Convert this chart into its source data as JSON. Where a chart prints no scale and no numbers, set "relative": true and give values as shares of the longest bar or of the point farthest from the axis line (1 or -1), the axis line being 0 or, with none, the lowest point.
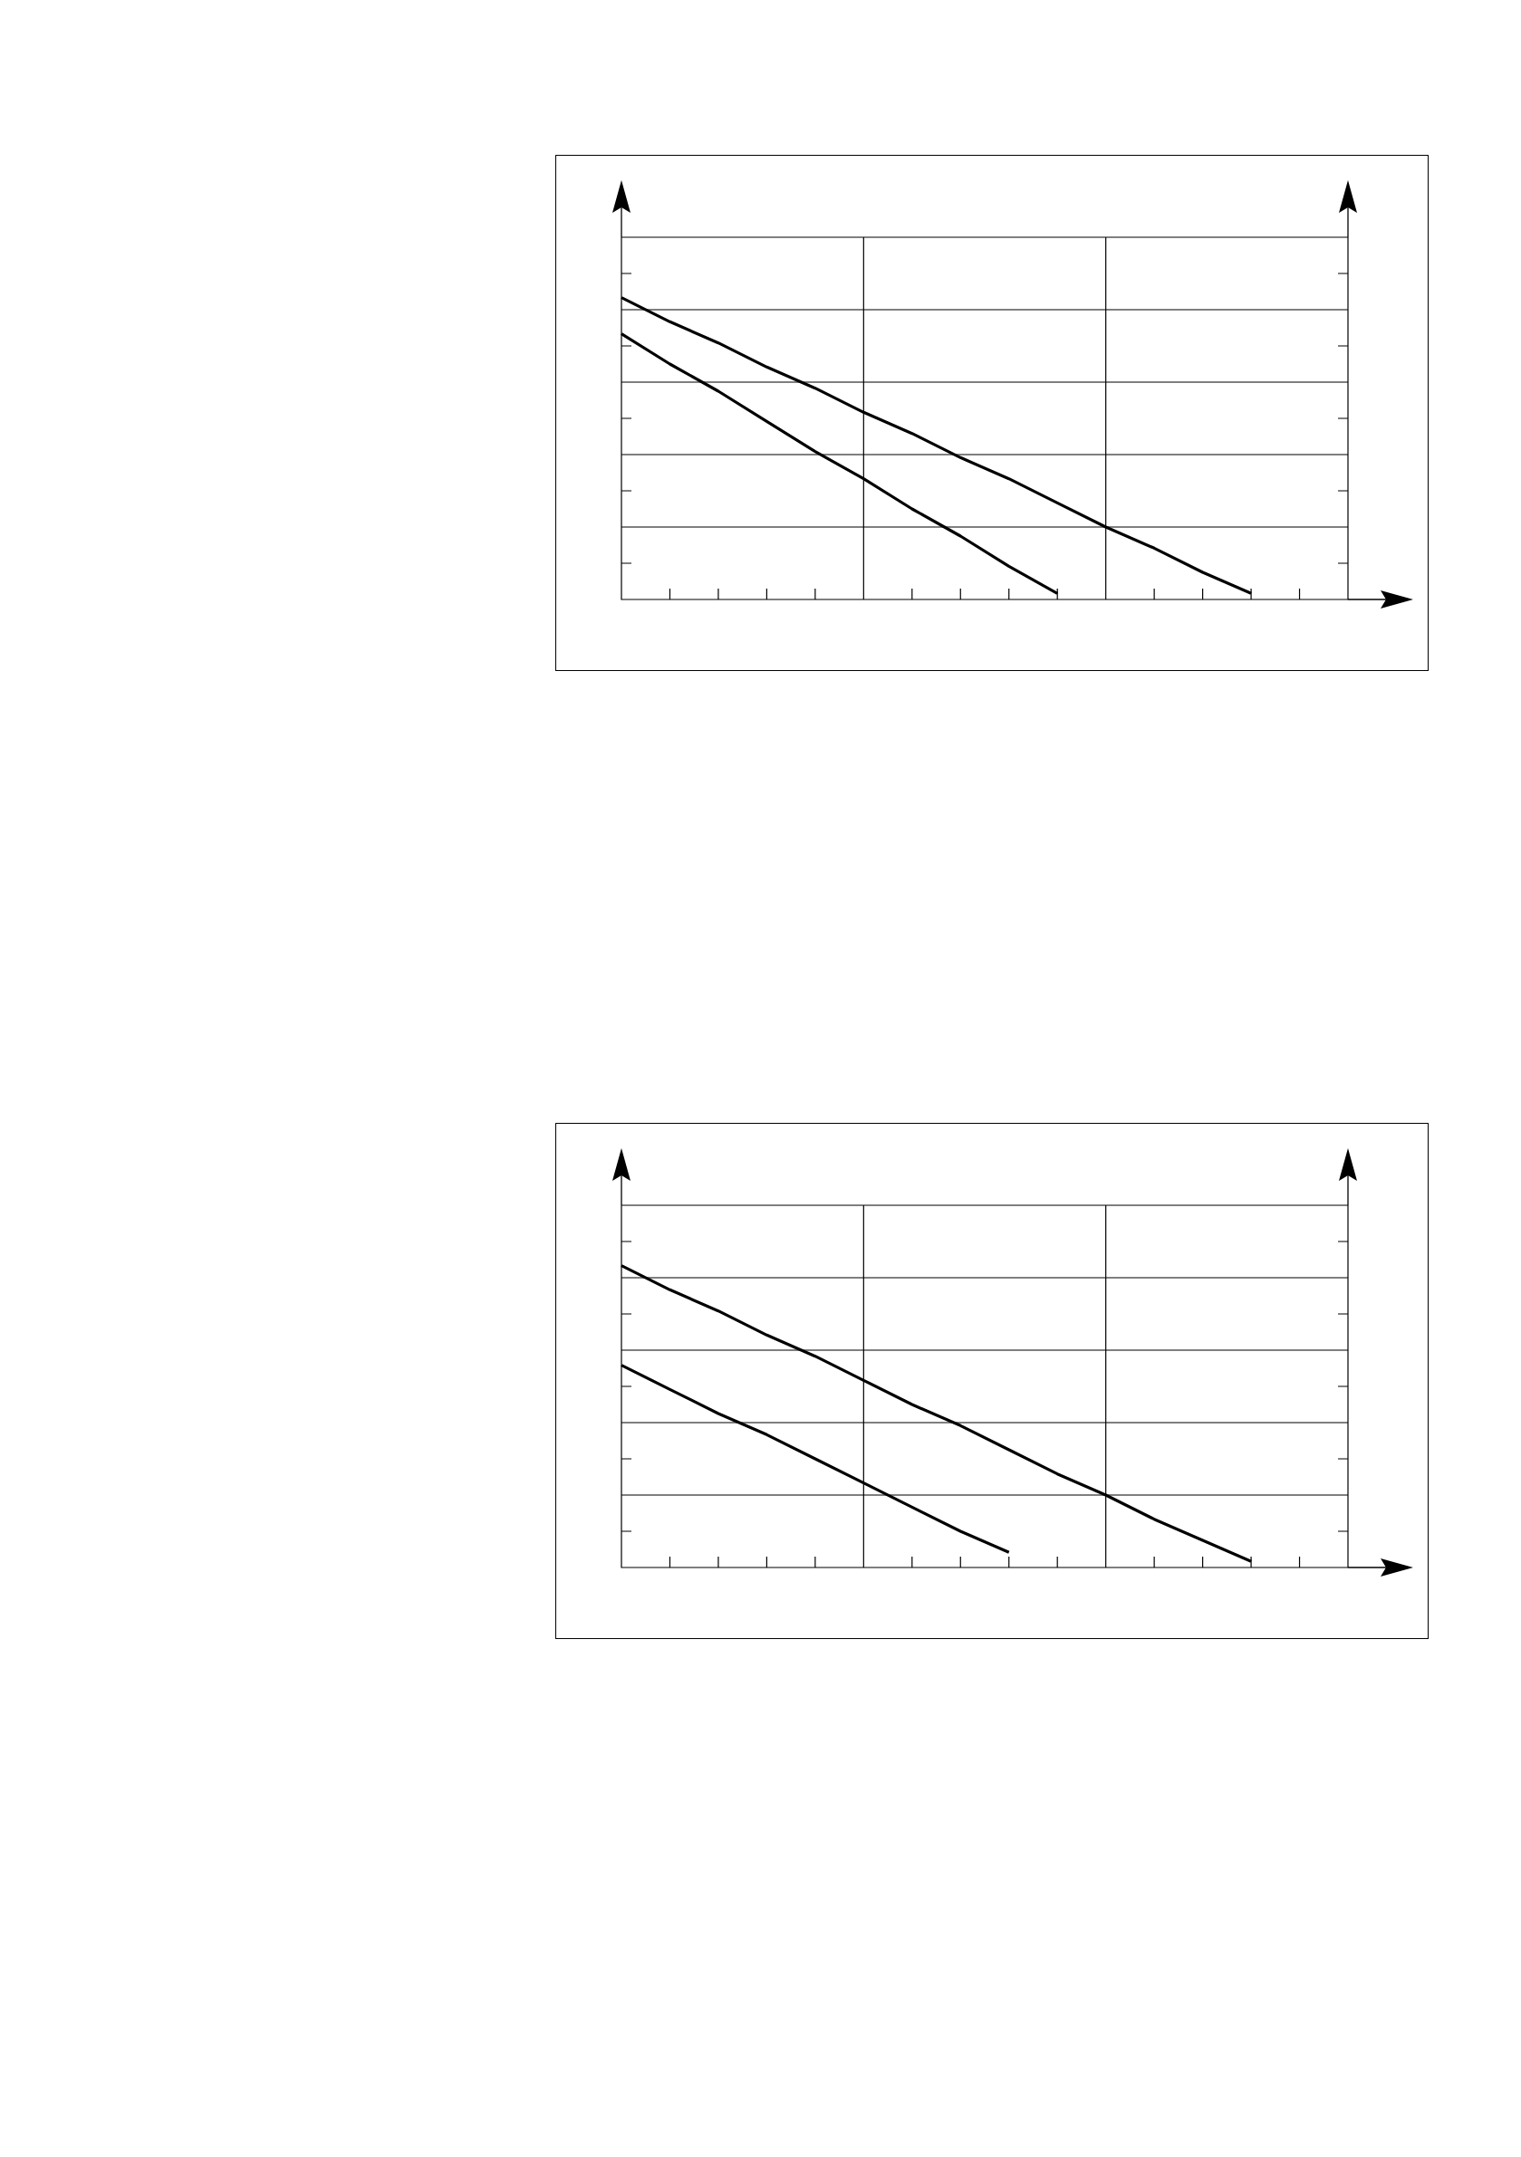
{
  "chart_data": [
    {
      "type": "line",
      "relative": true,
      "grid": true,
      "categories": [
        null,
        null,
        null,
        null,
        null,
        null,
        null,
        null,
        null,
        null,
        null,
        null,
        null,
        null,
        null,
        null
      ],
      "series": [
        {
          "color": "#000000",
          "values": [
            1,
            0.92,
            0.85,
            0.77,
            0.7,
            0.62,
            0.55,
            0.47,
            0.4,
            0.32,
            0.24,
            0.17,
            0.09,
            0.02,
            null,
            null
          ]
        },
        {
          "color": "#000000",
          "values": [
            0.88,
            0.78,
            0.69,
            0.59,
            0.49,
            0.4,
            0.3,
            0.21,
            0.11,
            0.02,
            null,
            null,
            null,
            null,
            null,
            null
          ]
        }
      ]
    },
    {
      "type": "line",
      "relative": true,
      "grid": true,
      "categories": [
        null,
        null,
        null,
        null,
        null,
        null,
        null,
        null,
        null,
        null,
        null,
        null,
        null,
        null,
        null,
        null
      ],
      "series": [
        {
          "color": "#000000",
          "values": [
            1,
            0.92,
            0.85,
            0.77,
            0.7,
            0.62,
            0.54,
            0.47,
            0.39,
            0.31,
            0.24,
            0.16,
            0.09,
            0.02,
            null,
            null
          ]
        },
        {
          "color": "#000000",
          "values": [
            0.67,
            0.59,
            0.51,
            0.44,
            0.36,
            0.28,
            0.2,
            0.12,
            0.05,
            null,
            null,
            null,
            null,
            null,
            null,
            null
          ]
        }
      ]
    }
  ]
}
